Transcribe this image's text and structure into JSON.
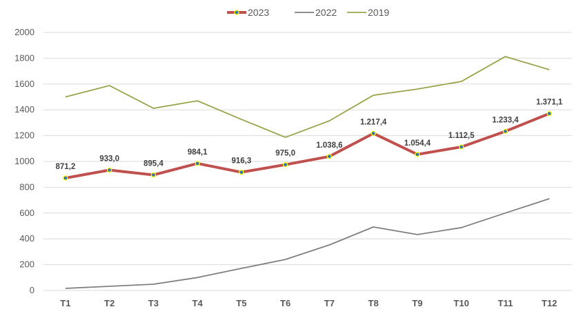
{
  "chart_data": {
    "type": "line",
    "title": "",
    "xlabel": "",
    "ylabel": "",
    "categories": [
      "T1",
      "T2",
      "T3",
      "T4",
      "T5",
      "T6",
      "T7",
      "T8",
      "T9",
      "T10",
      "T11",
      "T12"
    ],
    "ylim": [
      0,
      2000
    ],
    "yticks": [
      0,
      200,
      400,
      600,
      800,
      1000,
      1200,
      1400,
      1600,
      1800,
      2000
    ],
    "grid": true,
    "legend_position": "top",
    "series": [
      {
        "name": "2023",
        "color": "#C0504D",
        "marker": "circle",
        "marker_color": "#2E75B6",
        "marker_edge": "#FFFF00",
        "values": [
          871.2,
          933.0,
          895.4,
          984.1,
          916.3,
          975.0,
          1038.6,
          1217.4,
          1054.4,
          1112.5,
          1233.4,
          1371.1
        ],
        "data_labels": [
          "871,2",
          "933,0",
          "895,4",
          "984,1",
          "916,3",
          "975,0",
          "1.038,6",
          "1.217,4",
          "1.054,4",
          "1.112,5",
          "1.233,4",
          "1.371,1"
        ]
      },
      {
        "name": "2022",
        "color": "#7F7F7F",
        "values": [
          16,
          32,
          48,
          100,
          171,
          240,
          353,
          492,
          433,
          487,
          600,
          711
        ]
      },
      {
        "name": "2019",
        "color": "#9BA44C",
        "values": [
          1500,
          1588,
          1412,
          1470,
          1326,
          1187,
          1315,
          1513,
          1561,
          1620,
          1813,
          1711
        ]
      }
    ]
  }
}
